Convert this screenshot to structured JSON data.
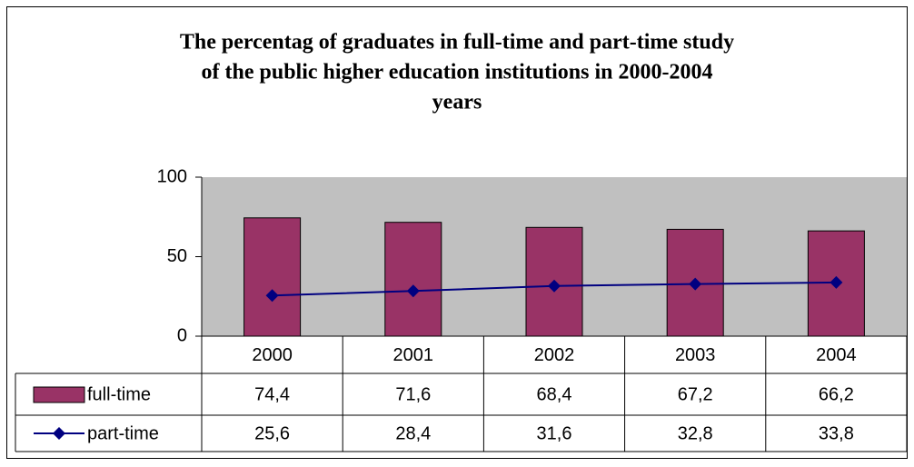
{
  "chart_data": {
    "type": "bar",
    "title": [
      "The percentag of graduates in full-time and part-time study",
      "of the public higher education institutions in 2000-2004",
      "years"
    ],
    "categories": [
      "2000",
      "2001",
      "2002",
      "2003",
      "2004"
    ],
    "series": [
      {
        "name": "full-time",
        "type": "bar",
        "color": "#993366",
        "values": [
          74.4,
          71.6,
          68.4,
          67.2,
          66.2
        ],
        "value_labels": [
          "74,4",
          "71,6",
          "68,4",
          "67,2",
          "66,2"
        ]
      },
      {
        "name": "part-time",
        "type": "line",
        "color": "#000080",
        "values": [
          25.6,
          28.4,
          31.6,
          32.8,
          33.8
        ],
        "value_labels": [
          "25,6",
          "28,4",
          "31,6",
          "32,8",
          "33,8"
        ]
      }
    ],
    "ylim": [
      0,
      100
    ],
    "yticks": [
      0,
      50,
      100
    ],
    "plot_background": "#c0c0c0"
  }
}
